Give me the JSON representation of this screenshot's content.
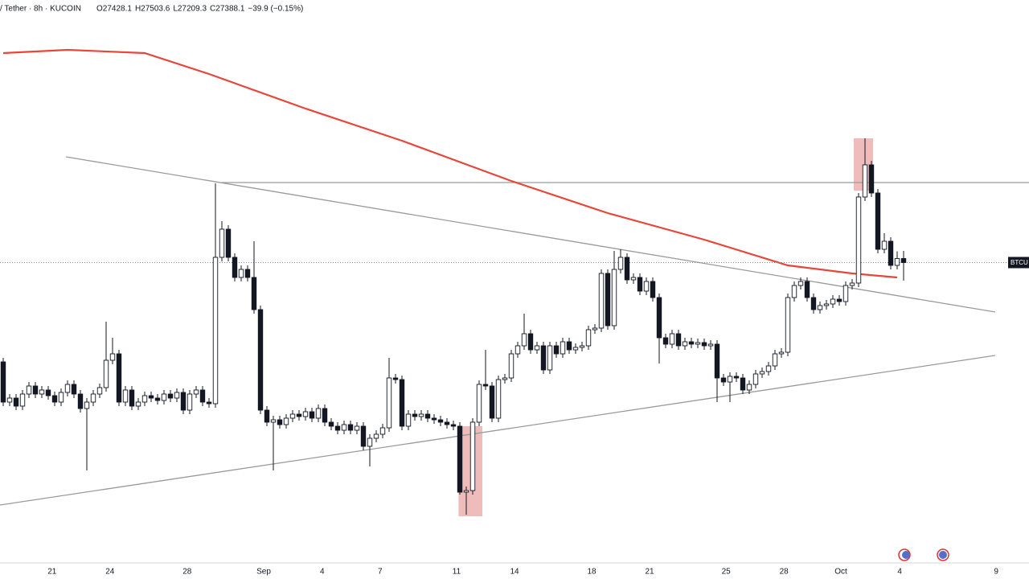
{
  "chart_data": {
    "type": "candlestick",
    "title": "/ Tether · 8h · KUCOIN",
    "ohlc_text": [
      "O27428.1",
      "H27503.6",
      "L27209.3",
      "C27388.1",
      "−39.9 (−0.15%)"
    ],
    "price_label": "BTCU",
    "xlim": [
      -0.5,
      159.5
    ],
    "ylim": [
      24400,
      30000
    ],
    "xticks": [
      {
        "value": 7.6,
        "label": "21"
      },
      {
        "value": 16.6,
        "label": "24"
      },
      {
        "value": 28.6,
        "label": "28"
      },
      {
        "value": 40.5,
        "label": "Sep"
      },
      {
        "value": 49.6,
        "label": "4"
      },
      {
        "value": 58.6,
        "label": "7"
      },
      {
        "value": 70.5,
        "label": "11"
      },
      {
        "value": 79.5,
        "label": "14"
      },
      {
        "value": 91.5,
        "label": "18"
      },
      {
        "value": 100.5,
        "label": "21"
      },
      {
        "value": 112.4,
        "label": "25"
      },
      {
        "value": 121.4,
        "label": "28"
      },
      {
        "value": 130.25,
        "label": "Oct"
      },
      {
        "value": 139.4,
        "label": "4"
      },
      {
        "value": 154.4,
        "label": "9"
      }
    ],
    "up_color": "#ffffff",
    "down_color": "#131722",
    "open": [
      26400,
      26000,
      26040,
      25960,
      26080,
      26160,
      26080,
      26120,
      26064,
      26000,
      26096,
      26176,
      26080,
      25936,
      26000,
      26080,
      26144,
      26416,
      26480,
      26000,
      26120,
      25960,
      26000,
      26064,
      26040,
      26016,
      26080,
      26040,
      26096,
      25920,
      26080,
      26120,
      26000,
      25984,
      27440,
      27720,
      27440,
      27240,
      27320,
      27240,
      26920,
      25920,
      25800,
      25824,
      25776,
      25840,
      25880,
      25856,
      25904,
      25840,
      25936,
      25800,
      25760,
      25720,
      25776,
      25720,
      25760,
      25560,
      25640,
      25680,
      25744,
      26240,
      26224,
      25760,
      25880,
      25856,
      25880,
      25840,
      25824,
      25800,
      25776,
      25760,
      25104,
      25120,
      25800,
      26176,
      26160,
      25840,
      26224,
      26240,
      26480,
      26560,
      26680,
      26520,
      26560,
      26320,
      26560,
      26480,
      26600,
      26520,
      26544,
      26560,
      26720,
      26736,
      27280,
      26760,
      27320,
      27440,
      27216,
      27240,
      27104,
      27200,
      27040,
      26640,
      26576,
      26680,
      26560,
      26600,
      26576,
      26592,
      26560,
      26576,
      26240,
      26200,
      26256,
      26240,
      26120,
      26176,
      26280,
      26304,
      26360,
      26480,
      26496,
      27040,
      27160,
      27200,
      27040,
      26920,
      26960,
      26976,
      27024,
      27000,
      27160,
      27184,
      28040,
      28360,
      28080,
      27520,
      27600,
      27360,
      27428.1
    ],
    "high": [
      26440,
      26080,
      26080,
      26120,
      26200,
      26200,
      26160,
      26160,
      26104,
      26136,
      26216,
      26216,
      26120,
      26040,
      26120,
      26184,
      26800,
      26640,
      26520,
      26160,
      26160,
      26040,
      26104,
      26104,
      26080,
      26120,
      26120,
      26136,
      26136,
      26120,
      26160,
      26160,
      26040,
      28176,
      27800,
      27760,
      27480,
      27360,
      27360,
      27600,
      26960,
      25960,
      25864,
      25864,
      25880,
      25920,
      25920,
      25944,
      25944,
      25976,
      25976,
      25840,
      25800,
      25816,
      25816,
      25800,
      25800,
      25680,
      25720,
      25784,
      26440,
      26280,
      26264,
      25920,
      25920,
      25920,
      25920,
      25880,
      25864,
      25840,
      25816,
      25800,
      25160,
      25840,
      26216,
      26520,
      26200,
      26264,
      26280,
      26520,
      26600,
      26880,
      26720,
      26600,
      26600,
      26600,
      26600,
      26640,
      26640,
      26584,
      26600,
      26760,
      26776,
      27320,
      27320,
      27504,
      27520,
      27480,
      27280,
      27280,
      27240,
      27240,
      27080,
      26680,
      26720,
      26720,
      26640,
      26640,
      26632,
      26632,
      26616,
      26616,
      26280,
      26296,
      26296,
      26280,
      26216,
      26320,
      26344,
      26400,
      26520,
      26536,
      27080,
      27200,
      27240,
      27240,
      27080,
      27000,
      27016,
      27064,
      27064,
      27200,
      27224,
      28080,
      28624,
      28400,
      28120,
      27680,
      27640,
      27500,
      27503.6
    ],
    "low": [
      25960,
      25960,
      25920,
      25920,
      26040,
      26040,
      26040,
      26024,
      25960,
      25960,
      26056,
      26040,
      25896,
      25320,
      25960,
      26040,
      26104,
      26376,
      25960,
      25960,
      25920,
      25920,
      25960,
      26000,
      25976,
      25976,
      26000,
      26000,
      25880,
      25880,
      26040,
      25960,
      25944,
      25944,
      27400,
      27400,
      27200,
      27200,
      27200,
      26880,
      25880,
      25760,
      25320,
      25736,
      25736,
      25800,
      25816,
      25816,
      25800,
      25800,
      25760,
      25720,
      25680,
      25680,
      25680,
      25680,
      25520,
      25360,
      25600,
      25640,
      25704,
      26184,
      25720,
      25720,
      25816,
      25816,
      25800,
      25784,
      25760,
      25736,
      25720,
      25080,
      24880,
      25080,
      25760,
      26120,
      25800,
      25800,
      26184,
      26200,
      26440,
      26520,
      26480,
      26480,
      26280,
      26280,
      26440,
      26440,
      26480,
      26480,
      26504,
      26520,
      26680,
      26696,
      26720,
      26720,
      27280,
      27176,
      27176,
      27064,
      27064,
      27000,
      26384,
      26536,
      26536,
      26520,
      26520,
      26536,
      26536,
      26520,
      26520,
      26000,
      26160,
      26000,
      26200,
      26080,
      26080,
      26136,
      26240,
      26264,
      26320,
      26440,
      26456,
      27000,
      27120,
      27000,
      26880,
      26880,
      26920,
      26936,
      26960,
      26960,
      27120,
      27144,
      28000,
      28040,
      27480,
      27480,
      27320,
      27320,
      27209.3
    ],
    "close": [
      26000,
      26040,
      25960,
      26080,
      26160,
      26080,
      26120,
      26064,
      26000,
      26096,
      26176,
      26080,
      25936,
      26000,
      26080,
      26144,
      26416,
      26480,
      26000,
      26120,
      25960,
      26000,
      26064,
      26040,
      26016,
      26080,
      26040,
      26096,
      25920,
      26080,
      26120,
      26000,
      25984,
      27440,
      27720,
      27440,
      27240,
      27320,
      27240,
      26920,
      25920,
      25800,
      25824,
      25776,
      25840,
      25880,
      25856,
      25904,
      25840,
      25936,
      25800,
      25760,
      25720,
      25776,
      25720,
      25760,
      25560,
      25640,
      25680,
      25744,
      26240,
      26224,
      25760,
      25880,
      25856,
      25880,
      25840,
      25824,
      25800,
      25776,
      25760,
      25104,
      25120,
      25800,
      26176,
      26160,
      25840,
      26224,
      26240,
      26480,
      26560,
      26680,
      26520,
      26560,
      26320,
      26560,
      26480,
      26600,
      26520,
      26544,
      26560,
      26720,
      26736,
      27280,
      26760,
      27320,
      27440,
      27216,
      27240,
      27104,
      27200,
      27040,
      26640,
      26576,
      26680,
      26560,
      26600,
      26576,
      26592,
      26560,
      26576,
      26240,
      26200,
      26256,
      26240,
      26120,
      26176,
      26280,
      26304,
      26360,
      26480,
      26496,
      27040,
      27160,
      27200,
      27040,
      26920,
      26960,
      26976,
      27024,
      27000,
      27160,
      27184,
      28040,
      28360,
      28080,
      27520,
      27600,
      27360,
      27428.1,
      27388.1
    ],
    "ma": {
      "color": "#e8463a",
      "x": [
        0,
        10,
        22,
        32,
        47,
        62,
        79,
        94,
        109,
        122,
        132,
        139
      ],
      "values": [
        29472,
        29504,
        29472,
        29264,
        28920,
        28600,
        28200,
        27880,
        27616,
        27360,
        27280,
        27240
      ]
    },
    "trendlines": [
      {
        "color": "#9a9a9a",
        "x": [
          9.75,
          154.25
        ],
        "values": [
          28440,
          26896
        ]
      },
      {
        "color": "#9a9a9a",
        "x": [
          -0.5,
          154.25
        ],
        "values": [
          24976,
          26464
        ]
      },
      {
        "color": "#9a9a9a",
        "x": [
          33.9,
          159.5
        ],
        "values": [
          28184,
          28184
        ]
      }
    ],
    "highlights": [
      {
        "color": "#e8a0a0",
        "x": [
          70.8,
          74.5
        ],
        "values": [
          24864,
          25760
        ]
      },
      {
        "color": "#e8a0a0",
        "x": [
          132.25,
          135.25
        ],
        "values": [
          28104,
          28624
        ]
      }
    ]
  }
}
